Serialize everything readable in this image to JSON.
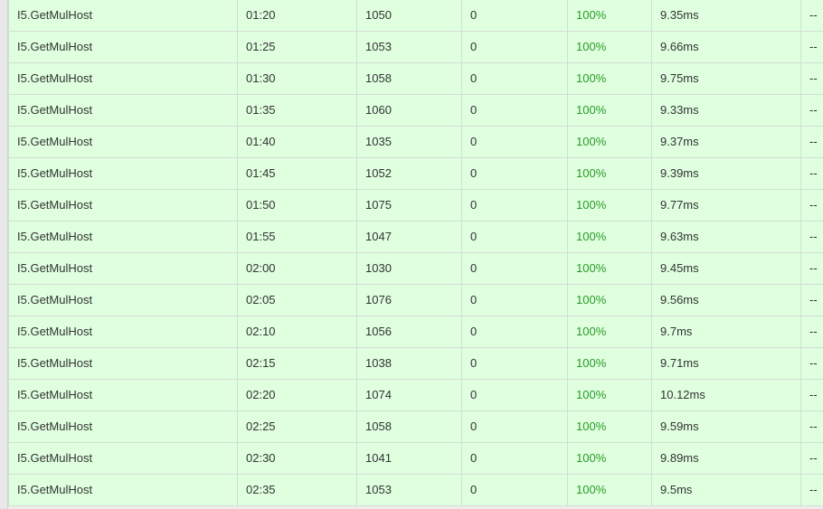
{
  "colors": {
    "row_background": "#dfffdf",
    "pass_rate_text": "#2a9a2a",
    "cell_border": "#d4dcd4"
  },
  "table": {
    "rows": [
      {
        "name": "I5.GetMulHost",
        "time": "01:20",
        "count": "1050",
        "errors": "0",
        "pass_rate": "100%",
        "avg_time": "9.35ms",
        "extra": "--"
      },
      {
        "name": "I5.GetMulHost",
        "time": "01:25",
        "count": "1053",
        "errors": "0",
        "pass_rate": "100%",
        "avg_time": "9.66ms",
        "extra": "--"
      },
      {
        "name": "I5.GetMulHost",
        "time": "01:30",
        "count": "1058",
        "errors": "0",
        "pass_rate": "100%",
        "avg_time": "9.75ms",
        "extra": "--"
      },
      {
        "name": "I5.GetMulHost",
        "time": "01:35",
        "count": "1060",
        "errors": "0",
        "pass_rate": "100%",
        "avg_time": "9.33ms",
        "extra": "--"
      },
      {
        "name": "I5.GetMulHost",
        "time": "01:40",
        "count": "1035",
        "errors": "0",
        "pass_rate": "100%",
        "avg_time": "9.37ms",
        "extra": "--"
      },
      {
        "name": "I5.GetMulHost",
        "time": "01:45",
        "count": "1052",
        "errors": "0",
        "pass_rate": "100%",
        "avg_time": "9.39ms",
        "extra": "--"
      },
      {
        "name": "I5.GetMulHost",
        "time": "01:50",
        "count": "1075",
        "errors": "0",
        "pass_rate": "100%",
        "avg_time": "9.77ms",
        "extra": "--"
      },
      {
        "name": "I5.GetMulHost",
        "time": "01:55",
        "count": "1047",
        "errors": "0",
        "pass_rate": "100%",
        "avg_time": "9.63ms",
        "extra": "--"
      },
      {
        "name": "I5.GetMulHost",
        "time": "02:00",
        "count": "1030",
        "errors": "0",
        "pass_rate": "100%",
        "avg_time": "9.45ms",
        "extra": "--"
      },
      {
        "name": "I5.GetMulHost",
        "time": "02:05",
        "count": "1076",
        "errors": "0",
        "pass_rate": "100%",
        "avg_time": "9.56ms",
        "extra": "--"
      },
      {
        "name": "I5.GetMulHost",
        "time": "02:10",
        "count": "1056",
        "errors": "0",
        "pass_rate": "100%",
        "avg_time": "9.7ms",
        "extra": "--"
      },
      {
        "name": "I5.GetMulHost",
        "time": "02:15",
        "count": "1038",
        "errors": "0",
        "pass_rate": "100%",
        "avg_time": "9.71ms",
        "extra": "--"
      },
      {
        "name": "I5.GetMulHost",
        "time": "02:20",
        "count": "1074",
        "errors": "0",
        "pass_rate": "100%",
        "avg_time": "10.12ms",
        "extra": "--"
      },
      {
        "name": "I5.GetMulHost",
        "time": "02:25",
        "count": "1058",
        "errors": "0",
        "pass_rate": "100%",
        "avg_time": "9.59ms",
        "extra": "--"
      },
      {
        "name": "I5.GetMulHost",
        "time": "02:30",
        "count": "1041",
        "errors": "0",
        "pass_rate": "100%",
        "avg_time": "9.89ms",
        "extra": "--"
      },
      {
        "name": "I5.GetMulHost",
        "time": "02:35",
        "count": "1053",
        "errors": "0",
        "pass_rate": "100%",
        "avg_time": "9.5ms",
        "extra": "--"
      }
    ]
  }
}
